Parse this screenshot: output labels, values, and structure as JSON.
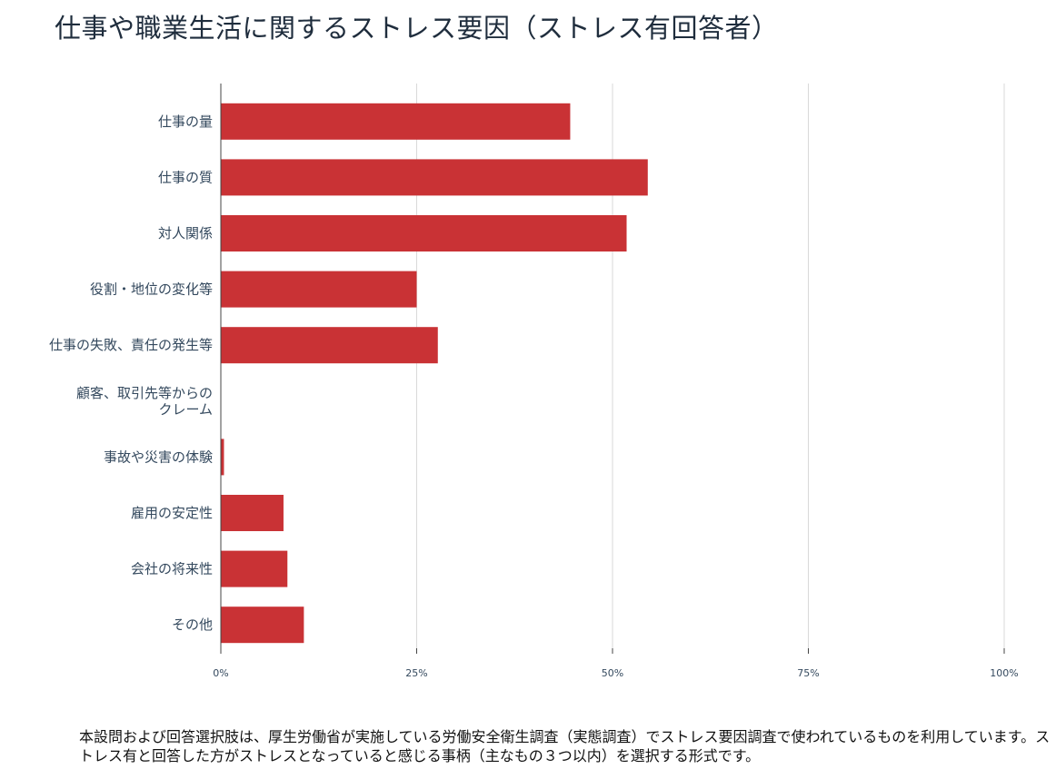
{
  "chart_data": {
    "type": "bar",
    "orientation": "horizontal",
    "title": "仕事や職業生活に関するストレス要因（ストレス有回答者）",
    "categories": [
      "仕事の量",
      "仕事の質",
      "対人関係",
      "役割・地位の変化等",
      "仕事の失敗、責任の発生等",
      [
        "顧客、取引先等からの",
        "クレーム"
      ],
      "事故や災害の体験",
      "雇用の安定性",
      "会社の将来性",
      "その他"
    ],
    "values": [
      44.6,
      54.5,
      51.8,
      25.0,
      27.7,
      0,
      0.4,
      8.0,
      8.5,
      10.6
    ],
    "xlim": [
      0,
      100
    ],
    "xticks": [
      0,
      25,
      50,
      75,
      100
    ],
    "xtick_labels": [
      "0%",
      "25%",
      "50%",
      "75%",
      "100%"
    ],
    "bar_color": "#c93235",
    "grid": true,
    "xlabel": "",
    "ylabel": ""
  },
  "footnote": "本設問および回答選択肢は、厚生労働省が実施している労働安全衛生調査（実態調査）でストレス要因調査で使われているものを利用しています。ストレス有と回答した方がストレスとなっていると感じる事柄（主なもの３つ以内）を選択する形式です。"
}
